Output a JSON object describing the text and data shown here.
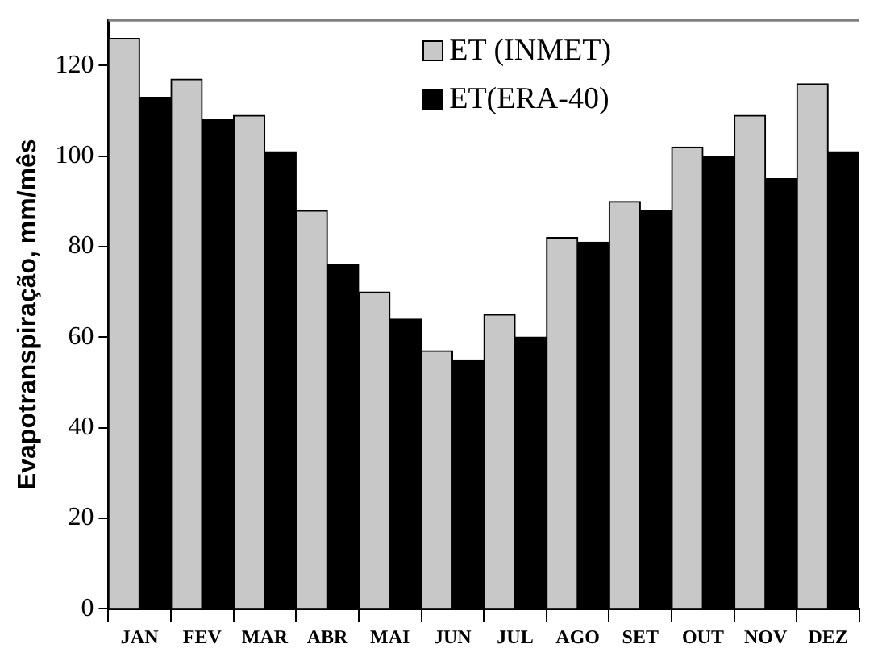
{
  "chart_data": {
    "type": "bar",
    "ylabel": "Evapotranspiração, mm/mês",
    "categories": [
      "JAN",
      "FEV",
      "MAR",
      "ABR",
      "MAI",
      "JUN",
      "JUL",
      "AGO",
      "SET",
      "OUT",
      "NOV",
      "DEZ"
    ],
    "series": [
      {
        "name": "ET (INMET)",
        "color": "#c8c8c8",
        "values": [
          126,
          117,
          109,
          88,
          70,
          57,
          65,
          82,
          90,
          102,
          109,
          116
        ]
      },
      {
        "name": "ET(ERA-40)",
        "color": "#000000",
        "values": [
          113,
          108,
          101,
          76,
          64,
          55,
          60,
          81,
          88,
          100,
          95,
          101
        ]
      }
    ],
    "ylim": [
      0,
      130
    ],
    "yticks": [
      0,
      20,
      40,
      60,
      80,
      100,
      120
    ],
    "grid": false,
    "legend": "top"
  }
}
